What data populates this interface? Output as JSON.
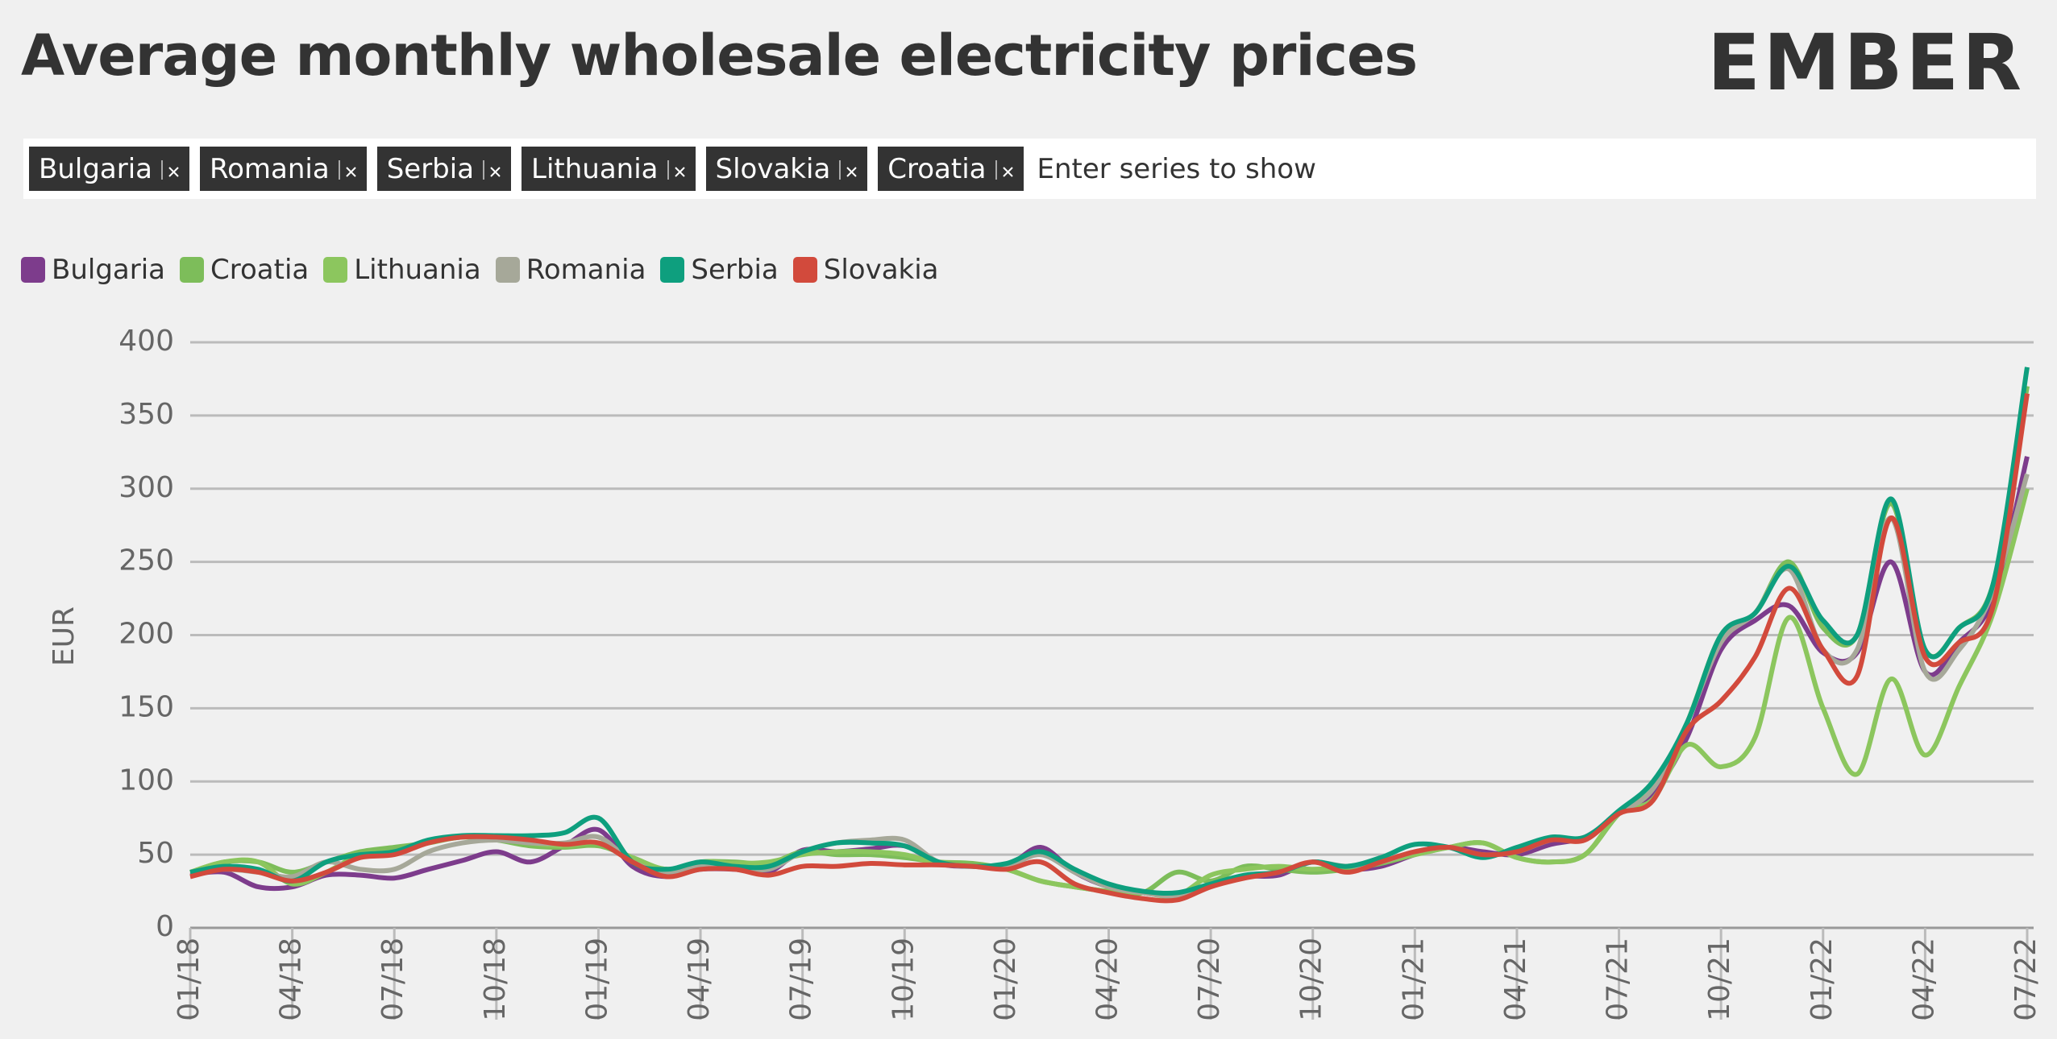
{
  "header": {
    "title": "Average monthly wholesale electricity prices",
    "logo": "EMBER"
  },
  "filter": {
    "tags": [
      "Bulgaria",
      "Romania",
      "Serbia",
      "Lithuania",
      "Slovakia",
      "Croatia"
    ],
    "placeholder": "Enter series to show"
  },
  "chart_data": {
    "type": "line",
    "y_label": "EUR",
    "ylim": [
      0,
      400
    ],
    "yticks": [
      0,
      50,
      100,
      150,
      200,
      250,
      300,
      350,
      400
    ],
    "grid": true,
    "legend": "top-left",
    "categories": [
      "01/18",
      null,
      null,
      "04/18",
      null,
      null,
      "07/18",
      null,
      null,
      "10/18",
      null,
      null,
      "01/19",
      null,
      null,
      "04/19",
      null,
      null,
      "07/19",
      null,
      null,
      "10/19",
      null,
      null,
      "01/20",
      null,
      null,
      "04/20",
      null,
      null,
      "07/20",
      null,
      null,
      "10/20",
      null,
      null,
      "01/21",
      null,
      null,
      "04/21",
      null,
      null,
      "07/21",
      null,
      null,
      "10/21",
      null,
      null,
      "01/22",
      null,
      null,
      "04/22",
      null,
      null,
      "07/22"
    ],
    "series": [
      {
        "name": "Bulgaria",
        "color": "#7d3c8c",
        "values": [
          36,
          38,
          28,
          28,
          36,
          36,
          34,
          40,
          46,
          52,
          45,
          56,
          67,
          42,
          35,
          40,
          40,
          38,
          53,
          52,
          54,
          56,
          44,
          42,
          42,
          55,
          38,
          28,
          24,
          22,
          30,
          35,
          36,
          45,
          40,
          42,
          50,
          55,
          52,
          50,
          57,
          62,
          78,
          92,
          130,
          190,
          210,
          220,
          188,
          188,
          250,
          175,
          195,
          225,
          322
        ]
      },
      {
        "name": "Croatia",
        "color": "#7dbd5a",
        "values": [
          38,
          45,
          45,
          38,
          45,
          52,
          55,
          58,
          62,
          60,
          56,
          55,
          56,
          48,
          40,
          45,
          45,
          44,
          52,
          50,
          50,
          48,
          45,
          44,
          40,
          32,
          28,
          25,
          24,
          38,
          32,
          42,
          40,
          38,
          40,
          44,
          50,
          55,
          58,
          48,
          45,
          50,
          78,
          95,
          140,
          200,
          215,
          250,
          205,
          200,
          290,
          190,
          205,
          235,
          370
        ]
      },
      {
        "name": "Lithuania",
        "color": "#8cc65e",
        "values": [
          38,
          45,
          45,
          30,
          38,
          50,
          52,
          58,
          62,
          62,
          58,
          56,
          58,
          48,
          40,
          45,
          44,
          45,
          50,
          52,
          52,
          50,
          44,
          42,
          40,
          32,
          28,
          25,
          24,
          22,
          36,
          40,
          42,
          40,
          42,
          45,
          50,
          55,
          58,
          48,
          45,
          50,
          78,
          88,
          125,
          110,
          130,
          212,
          150,
          105,
          170,
          118,
          165,
          215,
          300
        ]
      },
      {
        "name": "Romania",
        "color": "#a6a899",
        "values": [
          38,
          40,
          38,
          35,
          45,
          40,
          40,
          52,
          58,
          60,
          58,
          58,
          62,
          45,
          38,
          42,
          42,
          40,
          52,
          58,
          60,
          60,
          45,
          42,
          42,
          50,
          38,
          28,
          24,
          22,
          30,
          35,
          38,
          45,
          42,
          45,
          52,
          55,
          50,
          52,
          60,
          62,
          78,
          95,
          140,
          195,
          215,
          245,
          190,
          190,
          280,
          175,
          190,
          230,
          310
        ]
      },
      {
        "name": "Serbia",
        "color": "#0e9f7e",
        "values": [
          38,
          42,
          40,
          32,
          45,
          50,
          52,
          60,
          63,
          63,
          63,
          65,
          75,
          45,
          40,
          45,
          42,
          42,
          52,
          58,
          58,
          56,
          45,
          42,
          44,
          52,
          40,
          30,
          25,
          24,
          30,
          36,
          38,
          45,
          42,
          48,
          57,
          55,
          48,
          55,
          62,
          62,
          80,
          100,
          140,
          200,
          215,
          247,
          210,
          200,
          293,
          190,
          205,
          235,
          383
        ]
      },
      {
        "name": "Slovakia",
        "color": "#d24a3c",
        "values": [
          35,
          40,
          38,
          32,
          38,
          48,
          50,
          58,
          62,
          62,
          60,
          57,
          58,
          45,
          35,
          40,
          40,
          36,
          42,
          42,
          44,
          43,
          43,
          42,
          40,
          45,
          30,
          24,
          20,
          19,
          28,
          34,
          38,
          45,
          38,
          45,
          52,
          55,
          50,
          52,
          60,
          60,
          78,
          87,
          135,
          155,
          185,
          232,
          190,
          172,
          280,
          185,
          195,
          220,
          365
        ]
      }
    ]
  }
}
